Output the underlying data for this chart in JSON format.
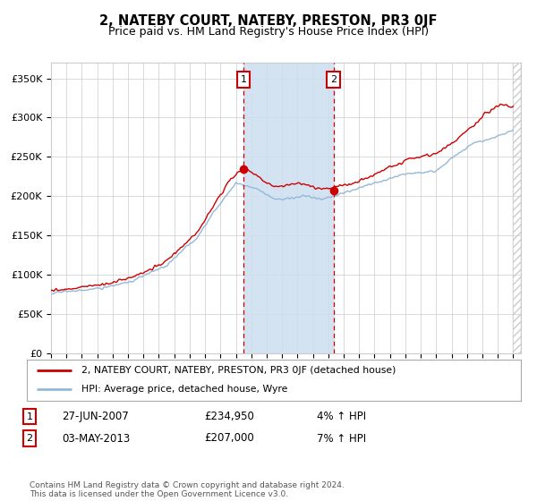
{
  "title": "2, NATEBY COURT, NATEBY, PRESTON, PR3 0JF",
  "subtitle": "Price paid vs. HM Land Registry's House Price Index (HPI)",
  "title_fontsize": 10.5,
  "subtitle_fontsize": 9,
  "ylabel_ticks": [
    "£0",
    "£50K",
    "£100K",
    "£150K",
    "£200K",
    "£250K",
    "£300K",
    "£350K"
  ],
  "ytick_values": [
    0,
    50000,
    100000,
    150000,
    200000,
    250000,
    300000,
    350000
  ],
  "ylim": [
    0,
    370000
  ],
  "xlim_start": 1995.0,
  "xlim_end": 2025.5,
  "sale1_x": 2007.49,
  "sale1_y": 234950,
  "sale1_label": "1",
  "sale1_date": "27-JUN-2007",
  "sale1_price": "£234,950",
  "sale1_hpi": "4% ↑ HPI",
  "sale2_x": 2013.34,
  "sale2_y": 207000,
  "sale2_label": "2",
  "sale2_date": "03-MAY-2013",
  "sale2_price": "£207,000",
  "sale2_hpi": "7% ↑ HPI",
  "legend_line1": "2, NATEBY COURT, NATEBY, PRESTON, PR3 0JF (detached house)",
  "legend_line2": "HPI: Average price, detached house, Wyre",
  "footer": "Contains HM Land Registry data © Crown copyright and database right 2024.\nThis data is licensed under the Open Government Licence v3.0.",
  "hpi_color": "#94b8d8",
  "price_color": "#cc0000",
  "shade_color": "#ccdff0",
  "dashed_color_1": "#cc0000",
  "dashed_color_2": "#cc0000",
  "grid_color": "#cccccc",
  "bg_color": "#ffffff",
  "box_color": "#cc0000"
}
